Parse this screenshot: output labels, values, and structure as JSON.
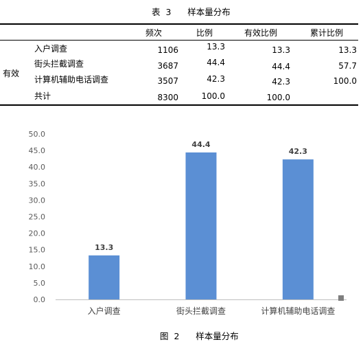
{
  "table": {
    "caption": "表  3      样本量分布",
    "headers": [
      "频次",
      "比例",
      "有效比例",
      "累计比例"
    ],
    "group_label": "有效",
    "rows": [
      {
        "label": "入户调查",
        "freq": "1106",
        "pct": "13.3",
        "valid": "13.3",
        "cum": "13.3"
      },
      {
        "label": "街头拦截调查",
        "freq": "3687",
        "pct": "44.4",
        "valid": "44.4",
        "cum": "57.7"
      },
      {
        "label": "计算机辅助电话调查",
        "freq": "3507",
        "pct": "42.3",
        "valid": "42.3",
        "cum": "100.0"
      },
      {
        "label": "共计",
        "freq": "8300",
        "pct": "100.0",
        "valid": "100.0",
        "cum": ""
      }
    ]
  },
  "chart_data": {
    "type": "bar",
    "categories": [
      "入户调查",
      "街头拦截调查",
      "计算机辅助电话调查"
    ],
    "values": [
      13.3,
      44.4,
      42.3
    ],
    "data_labels": [
      "13.3",
      "44.4",
      "42.3"
    ],
    "ylim": [
      0,
      50
    ],
    "yticks": [
      "0.0",
      "5.0",
      "10.0",
      "15.0",
      "20.0",
      "25.0",
      "30.0",
      "35.0",
      "40.0",
      "45.0",
      "50.0"
    ],
    "bar_color": "#5B8FD4",
    "legend_marker_color": "#7F7F7F",
    "grid": false
  },
  "figure_caption": "图  2      样本量分布"
}
